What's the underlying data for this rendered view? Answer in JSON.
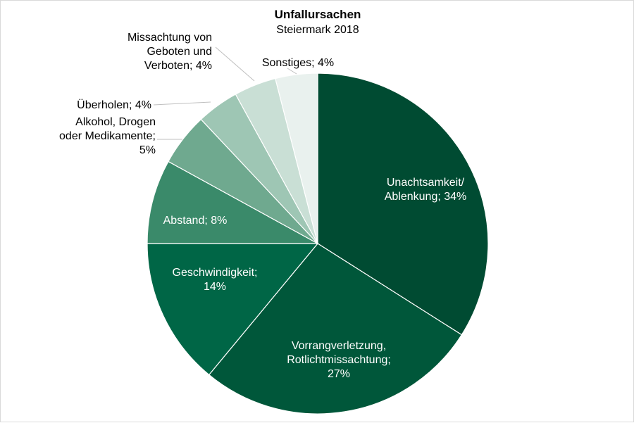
{
  "chart_data": {
    "type": "pie",
    "title": "Unfallursachen",
    "subtitle": "Steiermark 2018",
    "start": "12 o'clock",
    "direction": "clockwise",
    "slices": [
      {
        "label_lines": [
          "Unachtsamkeit/",
          "Ablenkung;  34%"
        ],
        "value": 34,
        "color": "#004B32",
        "label_color": "#ffffff"
      },
      {
        "label_lines": [
          "Vorrangverletzung,",
          "Rotlichtmissachtung;",
          "27%"
        ],
        "value": 27,
        "color": "#00573A",
        "label_color": "#ffffff"
      },
      {
        "label_lines": [
          "Geschwindigkeit;",
          "14%"
        ],
        "value": 14,
        "color": "#006646",
        "label_color": "#ffffff"
      },
      {
        "label_lines": [
          "Abstand; 8%"
        ],
        "value": 8,
        "color": "#3A8A6A",
        "label_color": "#ffffff"
      },
      {
        "label_lines": [
          "Alkohol, Drogen",
          "oder Medikamente;",
          "5%"
        ],
        "value": 5,
        "color": "#6FA98F",
        "label_color": "#000000"
      },
      {
        "label_lines": [
          "Überholen; 4%"
        ],
        "value": 4,
        "color": "#9EC6B4",
        "label_color": "#000000"
      },
      {
        "label_lines": [
          "Missachtung von",
          "Geboten und",
          "Verboten; 4%"
        ],
        "value": 4,
        "color": "#C9DFD5",
        "label_color": "#000000"
      },
      {
        "label_lines": [
          "Sonstiges; 4%"
        ],
        "value": 4,
        "color": "#E9F1EE",
        "label_color": "#000000"
      }
    ]
  }
}
